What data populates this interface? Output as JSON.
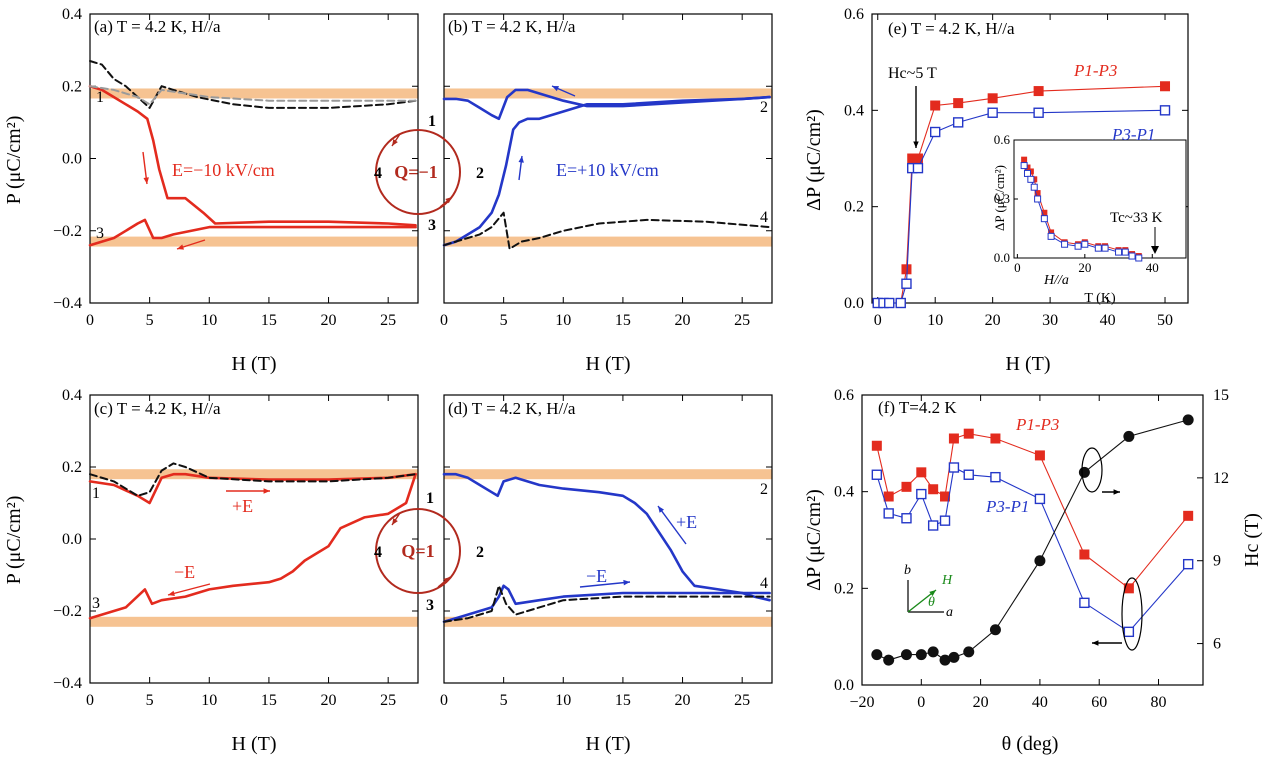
{
  "colors": {
    "red": "#e32b1e",
    "blue": "#2437c8",
    "black": "#111111",
    "gray": "#9a9a9a",
    "band": "#f5b97f",
    "green": "#1a8a1a"
  },
  "panel_labels": {
    "a": "(a) T = 4.2 K, H//a",
    "b": "(b) T = 4.2 K, H//a",
    "c": "(c) T = 4.2 K, H//a",
    "d": "(d) T = 4.2 K, H//a",
    "e": "(e)  T = 4.2 K, H//a",
    "f": "(f) T=4.2 K"
  },
  "axis_labels": {
    "P": "P (μC/cm²)",
    "H": "H (T)",
    "dP": "ΔP (μC/cm²)",
    "theta": "θ (deg)",
    "Hc": "Hc (T)",
    "T": "T (K)",
    "inset_dP": "ΔP (μC/cm²)"
  },
  "annotations": {
    "E_minus_field": "E=−10 kV/cm",
    "E_plus_field": "E=+10 kV/cm",
    "Q_minus": "Q=−1",
    "Q_plus": "Q=1",
    "plus_E": "+E",
    "minus_E_c": "−E",
    "plus_E_d": "+E",
    "minus_E_d": "−E",
    "Hc_5T": "Hc~5 T",
    "Tc_33K": "Tc~33 K",
    "inset_Ha": "H//a",
    "P1_P3": "P1-P3",
    "P3_P1": "P3-P1",
    "P1_P3_f": "P1-P3",
    "P3_P1_f": "P3-P1",
    "num_1": "1",
    "num_2": "2",
    "num_3": "3",
    "num_4": "4",
    "axis_b": "b",
    "axis_H": "H",
    "axis_theta": "θ",
    "axis_a": "a"
  },
  "chart_data": [
    {
      "panel": "a",
      "type": "line",
      "xlabel": "H (T)",
      "ylabel": "P (μC/cm²)",
      "xlim": [
        0,
        27.5
      ],
      "ylim": [
        -0.4,
        0.4
      ],
      "xticks": [
        0,
        5,
        10,
        15,
        20,
        25
      ],
      "yticks": [
        -0.4,
        -0.2,
        0.0,
        0.2,
        0.4
      ],
      "bands": [
        0.18,
        -0.23
      ],
      "series": [
        {
          "name": "E=-10 kV/cm sweep up",
          "color": "red",
          "x": [
            0,
            1,
            2,
            3,
            4,
            4.8,
            5.3,
            5.8,
            6.5,
            8,
            9.5,
            10.5,
            15,
            20,
            25,
            27.3
          ],
          "y": [
            0.2,
            0.19,
            0.17,
            0.15,
            0.13,
            0.11,
            0.05,
            -0.03,
            -0.11,
            -0.11,
            -0.15,
            -0.18,
            -0.175,
            -0.175,
            -0.18,
            -0.185
          ]
        },
        {
          "name": "E=-10 kV/cm sweep down",
          "color": "red",
          "x": [
            27.3,
            25,
            20,
            15,
            10,
            7,
            6,
            5.3,
            4.6,
            4,
            3,
            2,
            1,
            0
          ],
          "y": [
            -0.19,
            -0.19,
            -0.19,
            -0.19,
            -0.19,
            -0.21,
            -0.22,
            -0.22,
            -0.17,
            -0.18,
            -0.2,
            -0.22,
            -0.23,
            -0.24
          ]
        },
        {
          "name": "reference black dashed",
          "color": "black",
          "x": [
            0,
            1,
            2,
            3,
            4,
            5,
            6,
            7,
            9,
            12,
            15,
            20,
            25,
            27.3
          ],
          "y": [
            0.27,
            0.26,
            0.22,
            0.2,
            0.17,
            0.14,
            0.2,
            0.19,
            0.17,
            0.15,
            0.14,
            0.14,
            0.15,
            0.16
          ]
        },
        {
          "name": "reference gray dashed",
          "color": "gray",
          "x": [
            0,
            2,
            4,
            5,
            6,
            8,
            10,
            15,
            20,
            25,
            27.3
          ],
          "y": [
            0.2,
            0.19,
            0.17,
            0.15,
            0.19,
            0.18,
            0.17,
            0.16,
            0.16,
            0.16,
            0.16
          ]
        }
      ]
    },
    {
      "panel": "b",
      "type": "line",
      "xlabel": "H (T)",
      "ylabel": "",
      "xlim": [
        0,
        27.5
      ],
      "ylim": [
        -0.4,
        0.4
      ],
      "xticks": [
        0,
        5,
        10,
        15,
        20,
        25
      ],
      "yticks": [
        -0.4,
        -0.2,
        0.0,
        0.2,
        0.4
      ],
      "bands": [
        0.18,
        -0.23
      ],
      "series": [
        {
          "name": "E=+10 kV/cm sweep up",
          "color": "blue",
          "x": [
            0,
            1,
            2,
            3,
            4,
            4.6,
            5.2,
            5.8,
            6.3,
            7,
            8,
            10,
            12,
            15,
            20,
            25,
            27.3
          ],
          "y": [
            -0.24,
            -0.23,
            -0.21,
            -0.19,
            -0.15,
            -0.1,
            -0.02,
            0.08,
            0.1,
            0.11,
            0.11,
            0.13,
            0.15,
            0.15,
            0.16,
            0.165,
            0.17
          ]
        },
        {
          "name": "E=+10 kV/cm sweep down",
          "color": "blue",
          "x": [
            27.3,
            25,
            20,
            15,
            12,
            10,
            8,
            7,
            6,
            5.3,
            4.6,
            4,
            3,
            2,
            1,
            0
          ],
          "y": [
            0.17,
            0.165,
            0.155,
            0.145,
            0.145,
            0.16,
            0.18,
            0.19,
            0.19,
            0.17,
            0.11,
            0.12,
            0.14,
            0.16,
            0.165,
            0.165
          ]
        },
        {
          "name": "reference black dashed",
          "color": "black",
          "x": [
            0,
            1,
            2,
            3,
            4,
            5,
            5.5,
            6.5,
            8,
            10,
            13,
            17,
            22,
            27.3
          ],
          "y": [
            -0.24,
            -0.23,
            -0.22,
            -0.21,
            -0.19,
            -0.15,
            -0.25,
            -0.23,
            -0.22,
            -0.2,
            -0.18,
            -0.17,
            -0.175,
            -0.19
          ]
        }
      ]
    },
    {
      "panel": "c",
      "type": "line",
      "xlabel": "H (T)",
      "ylabel": "P (μC/cm²)",
      "xlim": [
        0,
        27.5
      ],
      "ylim": [
        -0.4,
        0.4
      ],
      "xticks": [
        0,
        5,
        10,
        15,
        20,
        25
      ],
      "yticks": [
        -0.4,
        -0.2,
        0.0,
        0.2,
        0.4
      ],
      "bands": [
        0.18,
        -0.23
      ],
      "series": [
        {
          "name": "+E sweep",
          "color": "red",
          "x": [
            0,
            2,
            4,
            5,
            6,
            7,
            8,
            10,
            15,
            20,
            25,
            27.3
          ],
          "y": [
            0.16,
            0.15,
            0.12,
            0.1,
            0.17,
            0.18,
            0.18,
            0.17,
            0.165,
            0.165,
            0.17,
            0.18
          ]
        },
        {
          "name": "-E sweep",
          "color": "red",
          "x": [
            27.3,
            26.5,
            25,
            23,
            21,
            20,
            19,
            18,
            17,
            16,
            15,
            12,
            10,
            8,
            6,
            5.2,
            4.6,
            3,
            1,
            0
          ],
          "y": [
            0.18,
            0.1,
            0.07,
            0.06,
            0.03,
            -0.02,
            -0.04,
            -0.06,
            -0.09,
            -0.11,
            -0.12,
            -0.13,
            -0.14,
            -0.16,
            -0.17,
            -0.18,
            -0.14,
            -0.19,
            -0.21,
            -0.22
          ]
        },
        {
          "name": "reference black dashed",
          "color": "black",
          "x": [
            0,
            2,
            4,
            5,
            6,
            7,
            8,
            10,
            15,
            20,
            25,
            27.3
          ],
          "y": [
            0.18,
            0.16,
            0.12,
            0.13,
            0.19,
            0.21,
            0.2,
            0.17,
            0.16,
            0.16,
            0.17,
            0.18
          ]
        }
      ]
    },
    {
      "panel": "d",
      "type": "line",
      "xlabel": "H (T)",
      "ylabel": "",
      "xlim": [
        0,
        27.5
      ],
      "ylim": [
        -0.4,
        0.4
      ],
      "xticks": [
        0,
        5,
        10,
        15,
        20,
        25
      ],
      "yticks": [
        -0.4,
        -0.2,
        0.0,
        0.2,
        0.4
      ],
      "bands": [
        0.18,
        -0.23
      ],
      "series": [
        {
          "name": "+E sweep",
          "color": "blue",
          "x": [
            0,
            1,
            2,
            3,
            4,
            4.5,
            5,
            6,
            8,
            10,
            13,
            15,
            16,
            17,
            18,
            19,
            20,
            21,
            23,
            25,
            26,
            27.3
          ],
          "y": [
            0.18,
            0.18,
            0.17,
            0.15,
            0.13,
            0.12,
            0.16,
            0.17,
            0.15,
            0.14,
            0.13,
            0.12,
            0.1,
            0.07,
            0.02,
            -0.03,
            -0.09,
            -0.13,
            -0.14,
            -0.15,
            -0.16,
            -0.17
          ]
        },
        {
          "name": "-E sweep",
          "color": "blue",
          "x": [
            27.3,
            26,
            25,
            20,
            15,
            10,
            8,
            6,
            5.4,
            5,
            4.6,
            4,
            3,
            2,
            1,
            0
          ],
          "y": [
            -0.15,
            -0.15,
            -0.15,
            -0.15,
            -0.15,
            -0.16,
            -0.17,
            -0.18,
            -0.14,
            -0.13,
            -0.16,
            -0.19,
            -0.2,
            -0.21,
            -0.22,
            -0.23
          ]
        },
        {
          "name": "reference black dashed",
          "color": "black",
          "x": [
            0,
            2,
            4,
            4.6,
            5.2,
            6,
            7,
            10,
            15,
            20,
            25,
            27.3
          ],
          "y": [
            -0.23,
            -0.22,
            -0.2,
            -0.13,
            -0.18,
            -0.21,
            -0.2,
            -0.17,
            -0.16,
            -0.16,
            -0.16,
            -0.16
          ]
        }
      ]
    },
    {
      "panel": "e",
      "type": "scatter",
      "xlabel": "H (T)",
      "ylabel": "ΔP (μC/cm²)",
      "xlim": [
        -1,
        54
      ],
      "ylim": [
        0.0,
        0.6
      ],
      "xticks": [
        0,
        10,
        20,
        30,
        40,
        50
      ],
      "yticks": [
        0.0,
        0.2,
        0.4,
        0.6
      ],
      "series": [
        {
          "name": "P1-P3",
          "color": "red",
          "marker": "filled-square",
          "x": [
            0,
            1,
            2,
            4,
            5,
            6,
            7,
            10,
            14,
            20,
            28,
            50
          ],
          "y": [
            0.0,
            0.0,
            0.0,
            0.0,
            0.07,
            0.3,
            0.3,
            0.41,
            0.415,
            0.425,
            0.44,
            0.45
          ]
        },
        {
          "name": "P3-P1",
          "color": "blue",
          "marker": "open-square",
          "x": [
            0,
            1,
            2,
            4,
            5,
            6,
            7,
            10,
            14,
            20,
            28,
            50
          ],
          "y": [
            0.0,
            0.0,
            0.0,
            0.0,
            0.04,
            0.28,
            0.28,
            0.355,
            0.375,
            0.395,
            0.395,
            0.4
          ]
        }
      ],
      "inset": {
        "xlabel": "T (K)",
        "ylabel": "ΔP (μC/cm²)",
        "xlim": [
          -1,
          50
        ],
        "ylim": [
          0.0,
          0.6
        ],
        "xticks": [
          0,
          20,
          40
        ],
        "yticks": [
          0.0,
          0.3,
          0.6
        ],
        "series": [
          {
            "name": "P1-P3",
            "color": "red",
            "x": [
              2,
              3,
              4,
              5,
              6,
              8,
              10,
              14,
              18,
              20,
              24,
              26,
              30,
              32,
              34,
              36
            ],
            "y": [
              0.5,
              0.46,
              0.44,
              0.4,
              0.33,
              0.23,
              0.13,
              0.08,
              0.07,
              0.08,
              0.06,
              0.06,
              0.04,
              0.04,
              0.02,
              0.01
            ]
          },
          {
            "name": "P3-P1",
            "color": "blue",
            "x": [
              2,
              3,
              4,
              5,
              6,
              8,
              10,
              14,
              18,
              20,
              24,
              26,
              30,
              32,
              34,
              36
            ],
            "y": [
              0.47,
              0.43,
              0.4,
              0.36,
              0.3,
              0.2,
              0.11,
              0.07,
              0.06,
              0.07,
              0.05,
              0.05,
              0.03,
              0.03,
              0.01,
              0.0
            ]
          }
        ]
      }
    },
    {
      "panel": "f",
      "type": "scatter",
      "xlabel": "θ (deg)",
      "ylabel": "ΔP (μC/cm²)",
      "ylabel_right": "Hc (T)",
      "xlim": [
        -20,
        95
      ],
      "ylim": [
        0.0,
        0.6
      ],
      "ylim_right": [
        4.5,
        15.0
      ],
      "xticks": [
        -20,
        0,
        20,
        40,
        60,
        80
      ],
      "yticks": [
        0.0,
        0.2,
        0.4,
        0.6
      ],
      "yticks_right": [
        6,
        9,
        12,
        15
      ],
      "series": [
        {
          "name": "P1-P3",
          "color": "red",
          "marker": "filled-square",
          "x": [
            -15,
            -11,
            -5,
            0,
            4,
            8,
            11,
            16,
            25,
            40,
            55,
            70,
            90
          ],
          "y": [
            0.495,
            0.39,
            0.41,
            0.44,
            0.405,
            0.39,
            0.51,
            0.52,
            0.51,
            0.475,
            0.27,
            0.2,
            0.35
          ]
        },
        {
          "name": "P3-P1",
          "color": "blue",
          "marker": "open-square",
          "x": [
            -15,
            -11,
            -5,
            0,
            4,
            8,
            11,
            16,
            25,
            40,
            55,
            70,
            90
          ],
          "y": [
            0.435,
            0.355,
            0.345,
            0.395,
            0.33,
            0.34,
            0.45,
            0.435,
            0.43,
            0.385,
            0.17,
            0.11,
            0.25
          ]
        },
        {
          "name": "Hc",
          "axis": "right",
          "color": "black",
          "marker": "filled-circle",
          "x": [
            -15,
            -11,
            -5,
            0,
            4,
            8,
            11,
            16,
            25,
            40,
            55,
            70,
            90
          ],
          "y": [
            5.6,
            5.4,
            5.6,
            5.6,
            5.7,
            5.4,
            5.5,
            5.7,
            6.5,
            9.0,
            12.2,
            13.5,
            14.1
          ]
        }
      ]
    }
  ]
}
